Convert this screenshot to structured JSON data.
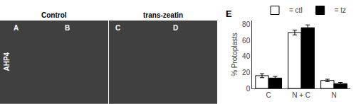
{
  "chart_data": {
    "type": "bar",
    "categories": [
      "C",
      "N + C",
      "N"
    ],
    "series": [
      {
        "name": "= ctl",
        "color": "white",
        "values": [
          16,
          70,
          10
        ],
        "errors": [
          2.5,
          3.0,
          1.5
        ]
      },
      {
        "name": "= tz",
        "color": "black",
        "values": [
          13,
          76,
          6
        ],
        "errors": [
          2.0,
          3.5,
          1.5
        ]
      }
    ],
    "ylabel": "% Protoplasts",
    "ylim": [
      0,
      85
    ],
    "yticks": [
      0,
      20,
      40,
      60,
      80
    ],
    "legend": "upper right",
    "grid": false,
    "annotations": [
      "E",
      "Control",
      "trans-zeatin",
      "AHP4",
      "A",
      "B",
      "C",
      "D"
    ]
  }
}
